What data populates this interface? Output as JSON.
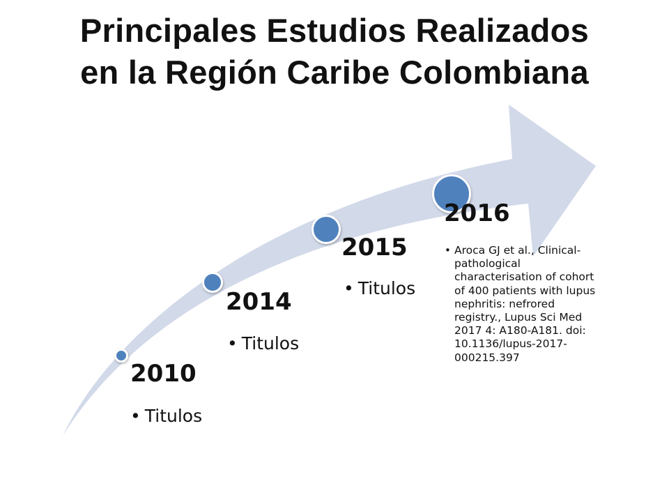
{
  "title": {
    "line1": "Principales Estudios Realizados",
    "line2": "en la Región Caribe Colombiana"
  },
  "colors": {
    "arrow": "#d2d9e9",
    "dot": "#4f81bd",
    "text": "#111111"
  },
  "timeline": [
    {
      "year": "2010",
      "item": "Titulos"
    },
    {
      "year": "2014",
      "item": "Titulos"
    },
    {
      "year": "2015",
      "item": "Titulos"
    },
    {
      "year": "2016",
      "item": "Aroca GJ et al., Clinical-pathological characterisation of cohort of 400 patients with lupus nephritis: nefrored registry., Lupus Sci Med 2017 4: A180-A181. doi: 10.1136/lupus-2017-000215.397"
    }
  ]
}
